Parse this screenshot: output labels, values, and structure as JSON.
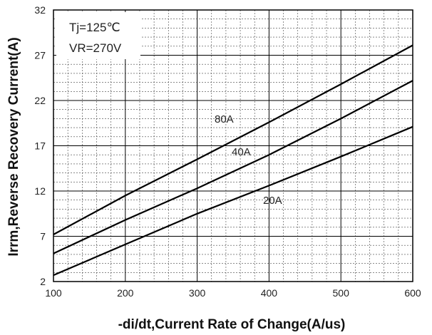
{
  "chart_data": {
    "type": "line",
    "title": "",
    "xlabel": "-di/dt,Current Rate of Change(A/us)",
    "ylabel": "Irrm,Reverse Recovery Current(A)",
    "xlim": [
      100,
      600
    ],
    "ylim": [
      2,
      32
    ],
    "xticks": [
      "100",
      "200",
      "300",
      "400",
      "500",
      "600"
    ],
    "yticks": [
      "2",
      "7",
      "12",
      "17",
      "22",
      "27",
      "32"
    ],
    "grid": true,
    "annotations": {
      "tj": "Tj=125℃",
      "vr": "VR=270V"
    },
    "series": [
      {
        "name": "80A",
        "x": [
          100,
          200,
          300,
          400,
          500,
          600
        ],
        "y": [
          7.2,
          11.5,
          15.5,
          19.6,
          23.8,
          28.1
        ]
      },
      {
        "name": "40A",
        "x": [
          100,
          200,
          300,
          400,
          500,
          600
        ],
        "y": [
          5.1,
          8.8,
          12.3,
          16.0,
          20.0,
          24.2
        ]
      },
      {
        "name": "20A",
        "x": [
          100,
          200,
          300,
          400,
          500,
          600
        ],
        "y": [
          2.7,
          6.1,
          9.5,
          12.6,
          15.8,
          19.1
        ]
      }
    ],
    "colors": {
      "line": "#000000",
      "major_grid": "#000000",
      "minor_grid": "#444444"
    }
  }
}
